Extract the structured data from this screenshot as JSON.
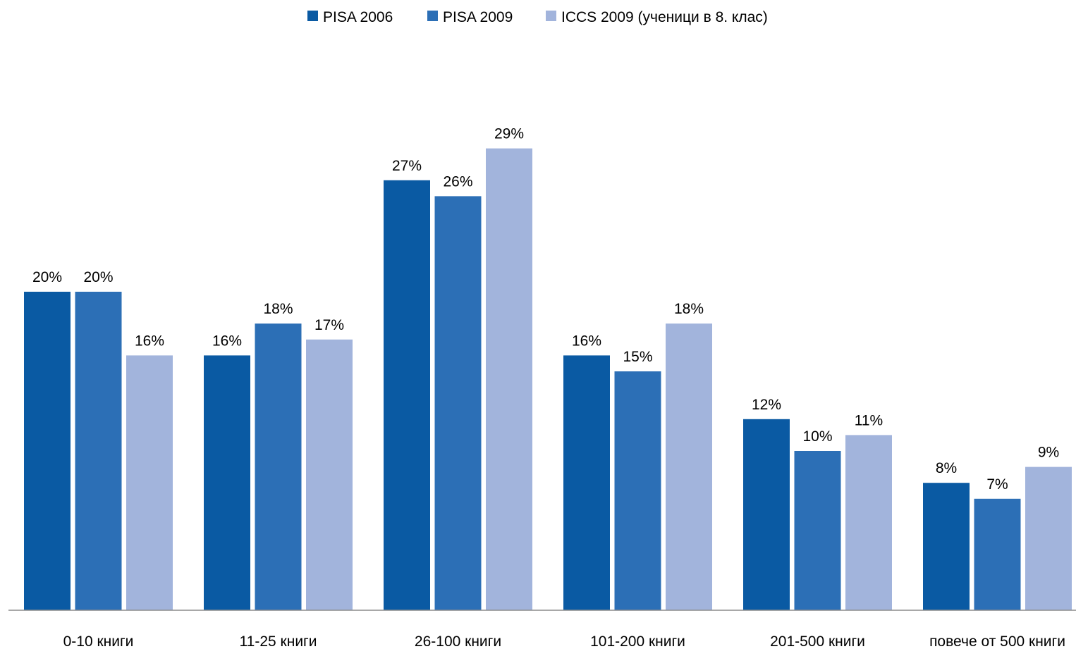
{
  "chart_data": {
    "type": "bar",
    "title": "",
    "xlabel": "",
    "ylabel": "",
    "ylim": [
      0,
      29
    ],
    "grid": false,
    "legend_position": "top",
    "categories": [
      "0-10 книги",
      "11-25 книги",
      "26-100 книги",
      "101-200 книги",
      "201-500 книги",
      "повече от 500 книги"
    ],
    "series": [
      {
        "name": "PISA 2006",
        "color": "#0a5aa3",
        "values": [
          20,
          16,
          27,
          16,
          12,
          8
        ],
        "labels": [
          "20%",
          "16%",
          "27%",
          "16%",
          "12%",
          "8%"
        ]
      },
      {
        "name": "PISA 2009",
        "color": "#2c6fb6",
        "values": [
          20,
          18,
          26,
          15,
          10,
          7
        ],
        "labels": [
          "20%",
          "18%",
          "26%",
          "15%",
          "10%",
          "7%"
        ]
      },
      {
        "name": "ICCS 2009 (ученици в 8. клас)",
        "color": "#a2b4dc",
        "values": [
          16,
          17,
          29,
          18,
          11,
          9
        ],
        "labels": [
          "16%",
          "17%",
          "29%",
          "18%",
          "11%",
          "9%"
        ]
      }
    ]
  }
}
